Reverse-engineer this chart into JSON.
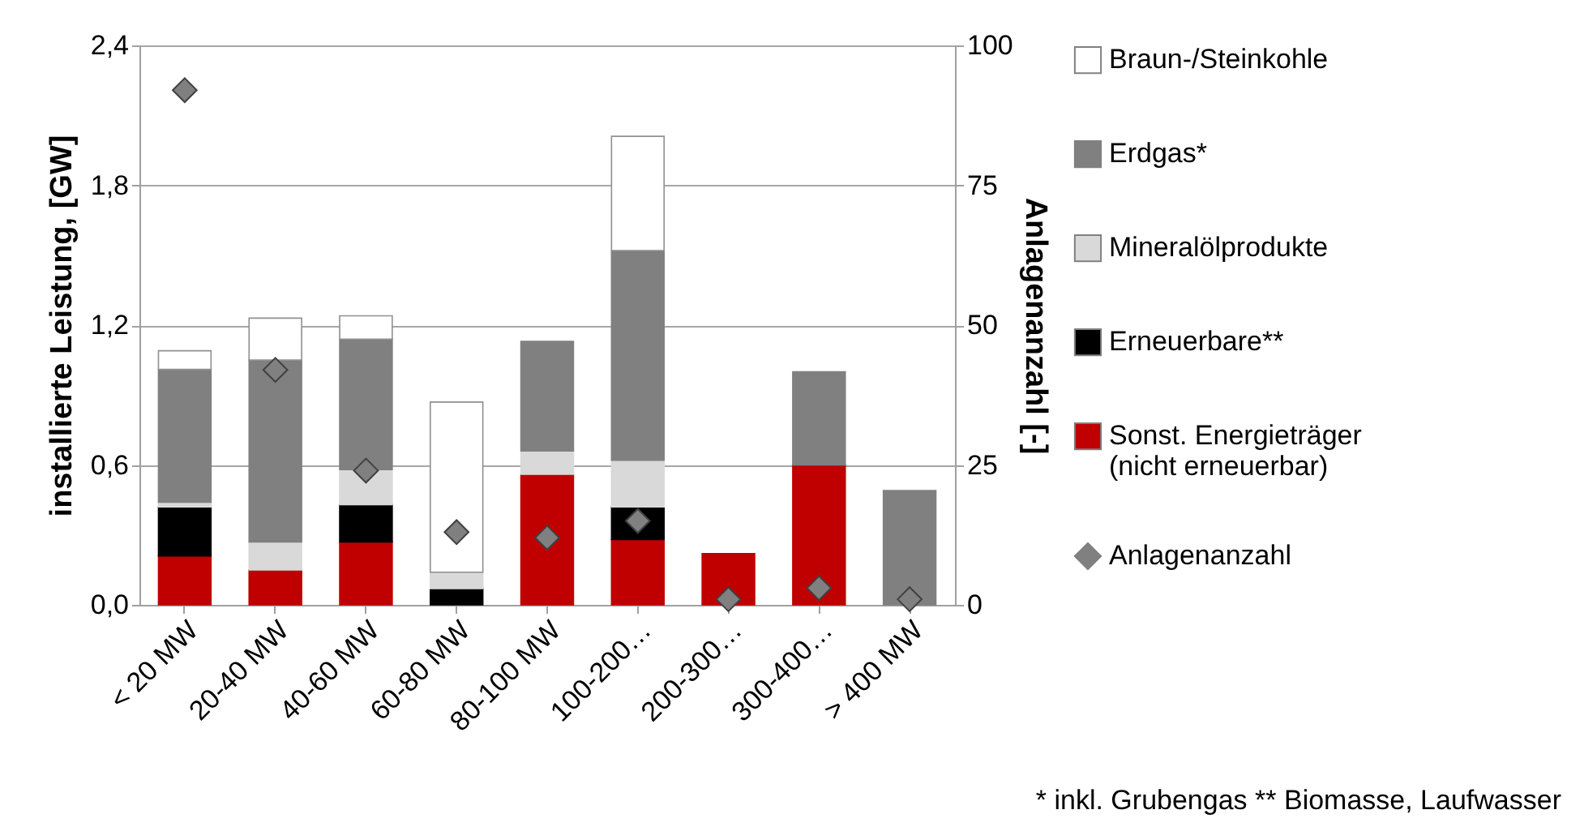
{
  "chart_data": {
    "type": "bar",
    "stacked": true,
    "categories": [
      "< 20 MW",
      "20-40 MW",
      "40-60 MW",
      "60-80 MW",
      "80-100 MW",
      "100-200…",
      "200-300…",
      "300-400…",
      "> 400 MW"
    ],
    "series": [
      {
        "name": "Sonst. Energieträger (nicht erneuerbar)",
        "color": "#c00000",
        "values": [
          0.21,
          0.15,
          0.27,
          0,
          0.56,
          0.28,
          0.22,
          0.6,
          0
        ]
      },
      {
        "name": "Erneuerbare**",
        "color": "#000000",
        "values": [
          0.21,
          0,
          0.16,
          0.07,
          0,
          0.14,
          0,
          0,
          0
        ]
      },
      {
        "name": "Mineralölprodukte",
        "color": "#d9d9d9",
        "values": [
          0.02,
          0.12,
          0.15,
          0.07,
          0.1,
          0.2,
          0,
          0,
          0
        ]
      },
      {
        "name": "Erdgas*",
        "color": "#808080",
        "values": [
          0.57,
          0.78,
          0.56,
          0,
          0.47,
          0.9,
          0,
          0.4,
          0.49
        ]
      },
      {
        "name": "Braun-/Steinkohle",
        "color": "#ffffff",
        "values": [
          0.08,
          0.18,
          0.1,
          0.73,
          0,
          0.49,
          0,
          0,
          0
        ]
      },
      {
        "name": "Anlagenanzahl",
        "type": "scatter",
        "axis": "y2",
        "color": "#808080",
        "values": [
          92,
          42,
          24,
          13,
          12,
          15,
          1,
          3,
          1
        ]
      }
    ],
    "ylabel": "installierte Leistung, [GW]",
    "y2label": "Anlagenanzahl [-]",
    "ylim": [
      0,
      2.4
    ],
    "yticks": [
      {
        "value": 0,
        "label": "0,0"
      },
      {
        "value": 0.6,
        "label": "0,6"
      },
      {
        "value": 1.2,
        "label": "1,2"
      },
      {
        "value": 1.8,
        "label": "1,8"
      },
      {
        "value": 2.4,
        "label": "2,4"
      }
    ],
    "y2lim": [
      0,
      100
    ],
    "y2ticks": [
      0,
      25,
      50,
      75,
      100
    ],
    "grid": "y",
    "legend": "right",
    "marker": "diamond",
    "annotations": [
      "* inkl. Grubengas ** Biomasse, Laufwasser"
    ]
  }
}
